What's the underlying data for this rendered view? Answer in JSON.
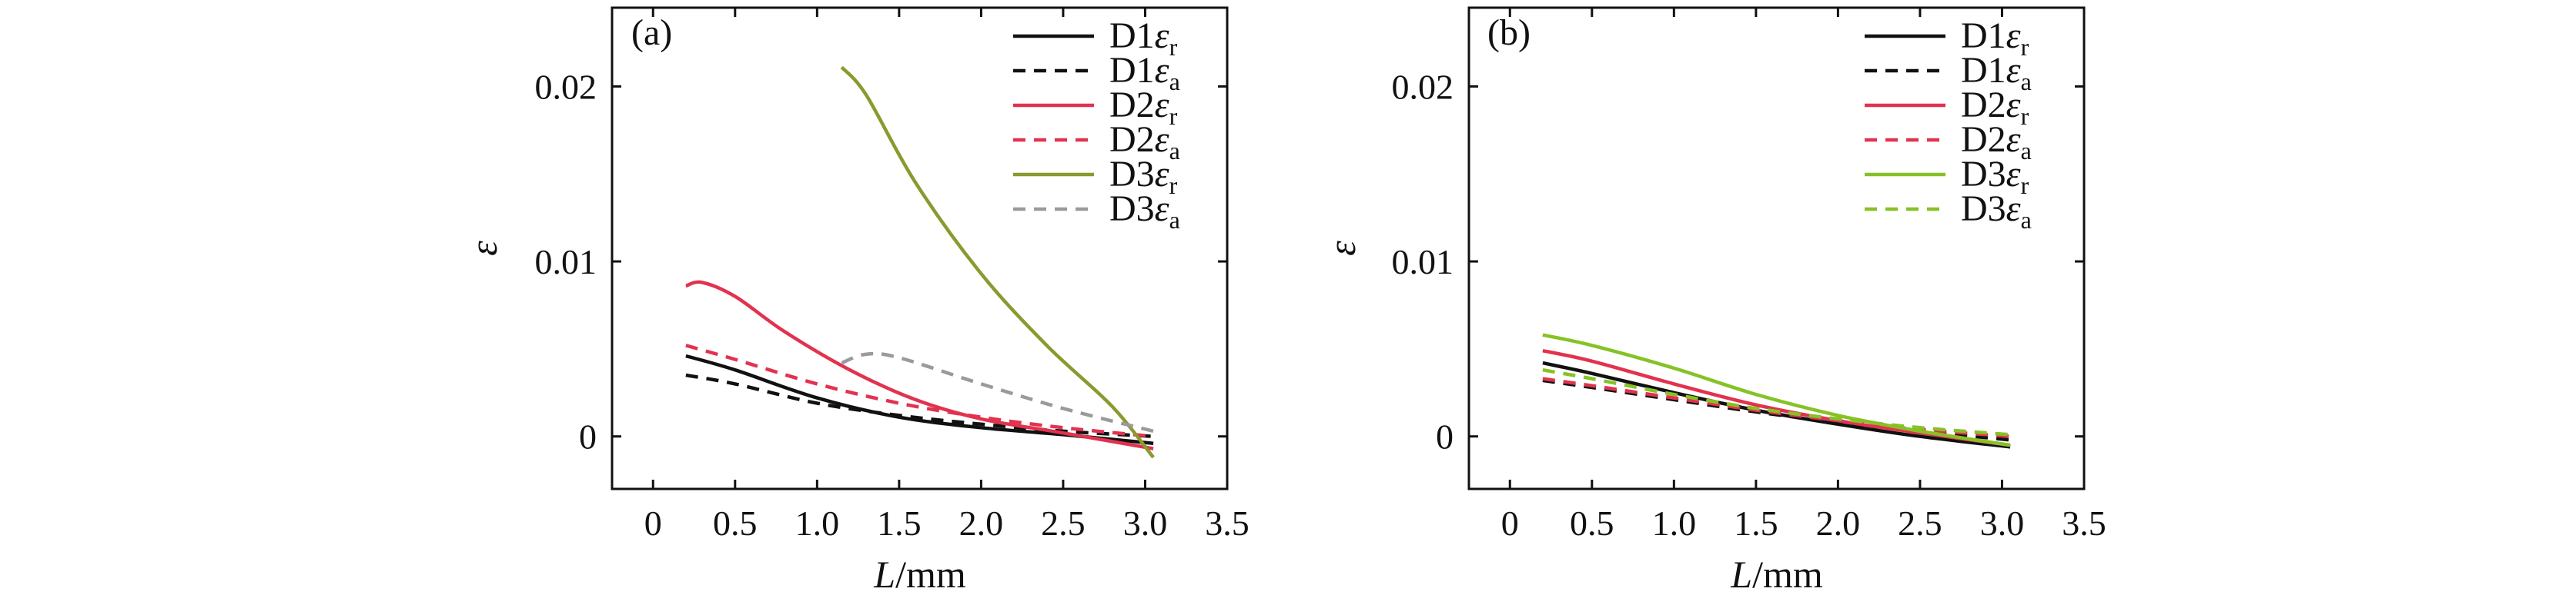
{
  "chart_data": [
    {
      "type": "line",
      "panel_label": "(a)",
      "xlabel_italic": "L",
      "xlabel_rest": "/mm",
      "ylabel": "ε",
      "xlim": [
        -0.25,
        3.5
      ],
      "ylim": [
        -0.003,
        0.0245
      ],
      "xticks": [
        0,
        0.5,
        1.0,
        1.5,
        2.0,
        2.5,
        3.0,
        3.5
      ],
      "xtick_labels": [
        "0",
        "0.5",
        "1.0",
        "1.5",
        "2.0",
        "2.5",
        "3.0",
        "3.5"
      ],
      "yticks": [
        0,
        0.01,
        0.02
      ],
      "ytick_labels": [
        "0",
        "0.01",
        "0.02"
      ],
      "legend_position": "top-right",
      "series": [
        {
          "name": "D1",
          "legend_symbol": "ε",
          "legend_sub": "r",
          "color": "#111111",
          "dash": "solid",
          "x": [
            0.2,
            0.5,
            1.0,
            1.5,
            2.0,
            2.5,
            3.05
          ],
          "y": [
            0.0046,
            0.0038,
            0.0022,
            0.0011,
            0.0005,
            0.0001,
            -0.0004
          ]
        },
        {
          "name": "D1",
          "legend_symbol": "ε",
          "legend_sub": "a",
          "color": "#111111",
          "dash": "dashed",
          "x": [
            0.2,
            0.5,
            1.0,
            1.5,
            2.0,
            2.5,
            3.05
          ],
          "y": [
            0.0035,
            0.003,
            0.0019,
            0.0012,
            0.0007,
            0.0003,
            0.0
          ]
        },
        {
          "name": "D2",
          "legend_symbol": "ε",
          "legend_sub": "r",
          "color": "#e2324e",
          "dash": "solid",
          "x": [
            0.2,
            0.3,
            0.5,
            0.8,
            1.2,
            1.6,
            2.0,
            2.5,
            3.05
          ],
          "y": [
            0.0086,
            0.0088,
            0.008,
            0.006,
            0.0038,
            0.0021,
            0.001,
            0.0002,
            -0.0007
          ]
        },
        {
          "name": "D2",
          "legend_symbol": "ε",
          "legend_sub": "a",
          "color": "#e2324e",
          "dash": "dashed",
          "x": [
            0.2,
            0.5,
            1.0,
            1.5,
            2.0,
            2.5,
            3.05
          ],
          "y": [
            0.0052,
            0.0044,
            0.003,
            0.0019,
            0.0011,
            0.0005,
            0.0
          ]
        },
        {
          "name": "D3",
          "legend_symbol": "ε",
          "legend_sub": "r",
          "color": "#8a9a2e",
          "dash": "solid",
          "x": [
            1.15,
            1.3,
            1.6,
            2.0,
            2.4,
            2.8,
            3.05
          ],
          "y": [
            0.0211,
            0.0195,
            0.0145,
            0.0093,
            0.0052,
            0.0017,
            -0.0012
          ]
        },
        {
          "name": "D3",
          "legend_symbol": "ε",
          "legend_sub": "a",
          "color": "#9a9a9a",
          "dash": "dashed",
          "x": [
            1.15,
            1.3,
            1.5,
            2.0,
            2.5,
            3.05
          ],
          "y": [
            0.0042,
            0.0047,
            0.0045,
            0.003,
            0.0016,
            0.0003
          ]
        }
      ]
    },
    {
      "type": "line",
      "panel_label": "(b)",
      "xlabel_italic": "L",
      "xlabel_rest": "/mm",
      "ylabel": "ε",
      "xlim": [
        -0.25,
        3.5
      ],
      "ylim": [
        -0.003,
        0.0245
      ],
      "xticks": [
        0,
        0.5,
        1.0,
        1.5,
        2.0,
        2.5,
        3.0,
        3.5
      ],
      "xtick_labels": [
        "0",
        "0.5",
        "1.0",
        "1.5",
        "2.0",
        "2.5",
        "3.0",
        "3.5"
      ],
      "yticks": [
        0,
        0.01,
        0.02
      ],
      "ytick_labels": [
        "0",
        "0.01",
        "0.02"
      ],
      "legend_position": "top-right",
      "series": [
        {
          "name": "D1",
          "legend_symbol": "ε",
          "legend_sub": "r",
          "color": "#111111",
          "dash": "solid",
          "x": [
            0.2,
            0.5,
            1.0,
            1.5,
            2.0,
            2.5,
            3.05
          ],
          "y": [
            0.0042,
            0.0036,
            0.0025,
            0.0015,
            0.0007,
            0.0,
            -0.0006
          ]
        },
        {
          "name": "D1",
          "legend_symbol": "ε",
          "legend_sub": "a",
          "color": "#111111",
          "dash": "dashed",
          "x": [
            0.2,
            0.5,
            1.0,
            1.5,
            2.0,
            2.5,
            3.05
          ],
          "y": [
            0.0032,
            0.0028,
            0.0021,
            0.0014,
            0.0008,
            0.0003,
            -0.0002
          ]
        },
        {
          "name": "D2",
          "legend_symbol": "ε",
          "legend_sub": "r",
          "color": "#e2324e",
          "dash": "solid",
          "x": [
            0.2,
            0.5,
            1.0,
            1.5,
            2.0,
            2.5,
            3.05
          ],
          "y": [
            0.0049,
            0.0043,
            0.003,
            0.0018,
            0.0009,
            0.0002,
            -0.0005
          ]
        },
        {
          "name": "D2",
          "legend_symbol": "ε",
          "legend_sub": "a",
          "color": "#e2324e",
          "dash": "dashed",
          "x": [
            0.2,
            0.5,
            1.0,
            1.5,
            2.0,
            2.5,
            3.05
          ],
          "y": [
            0.0033,
            0.0029,
            0.0022,
            0.0015,
            0.0009,
            0.0004,
            0.0
          ]
        },
        {
          "name": "D3",
          "legend_symbol": "ε",
          "legend_sub": "r",
          "color": "#86c226",
          "dash": "solid",
          "x": [
            0.2,
            0.5,
            1.0,
            1.5,
            2.0,
            2.5,
            3.05
          ],
          "y": [
            0.0058,
            0.0052,
            0.0039,
            0.0024,
            0.0012,
            0.0003,
            -0.0005
          ]
        },
        {
          "name": "D3",
          "legend_symbol": "ε",
          "legend_sub": "a",
          "color": "#86c226",
          "dash": "dashed",
          "x": [
            0.2,
            0.5,
            1.0,
            1.5,
            2.0,
            2.5,
            3.05
          ],
          "y": [
            0.0038,
            0.0033,
            0.0024,
            0.0016,
            0.001,
            0.0005,
            0.0001
          ]
        }
      ]
    }
  ]
}
